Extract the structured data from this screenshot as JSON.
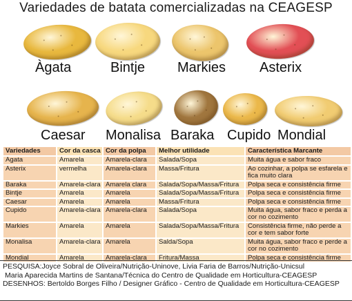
{
  "title": "Variedades de batata comercializadas na CEAGESP",
  "varieties_row1": [
    {
      "name": "Àgata",
      "color": "#e8b83e"
    },
    {
      "name": "Bintje",
      "color": "#f7d87e"
    },
    {
      "name": "Markies",
      "color": "#ecc56c"
    },
    {
      "name": "Asterix",
      "color": "#e24f55"
    }
  ],
  "varieties_row2": [
    {
      "name": "Caesar",
      "color": "#e6b44d"
    },
    {
      "name": "Monalisa",
      "color": "#f5dc8a"
    },
    {
      "name": "Baraka",
      "color": "#a0763e"
    },
    {
      "name": "Cupido",
      "color": "#ebb84a"
    },
    {
      "name": "Mondial",
      "color": "#f1cc72"
    }
  ],
  "table": {
    "headers": [
      "Variedades",
      "Cor da casca",
      "Cor da polpa",
      "Melhor utilidade",
      "Característica Marcante"
    ],
    "rows": [
      [
        "Àgata",
        "Amarela",
        "Amarela-clara",
        "Salada/Sopa",
        "Muita água e sabor fraco"
      ],
      [
        "Asterix",
        "vermelha",
        "Amarela-clara",
        "Massa/Fritura",
        "Ao cozinhar, a polpa se esfarela e fica muito clara"
      ],
      [
        "Baraka",
        "Amarela-clara",
        "Amarela clara",
        "Salada/Sopa/Massa/Fritura",
        "Polpa seca e consistência firme"
      ],
      [
        "Bintje",
        "Amarela",
        "Amarela",
        "Salada/Sopa/Massa/Fritura",
        "Polpa seca e consistência firme"
      ],
      [
        "Caesar",
        "Amarela",
        "Amarela",
        "Massa/Fritura",
        "Polpa seca e consistência firme"
      ],
      [
        "Cupido",
        "Amarela-clara",
        "Amarela-clara",
        "Salada/Sopa",
        "Muita água, sabor fraco e perda a cor no cozimento"
      ],
      [
        "Markies",
        "Amarela",
        "Amarela",
        "Salada/Sopa/Massa/Fritura",
        "Consistência firme, não perde a cor e tem sabor forte"
      ],
      [
        "Monalisa",
        "Amarela-clara",
        "Amarela",
        "Salda/Sopa",
        "Muita água, sabor fraco e perde a cor no cozimento"
      ],
      [
        "Mondial",
        "Amarela",
        "Amarela-clara",
        "Fritura/Massa",
        "Polpa seca e consistência firme"
      ]
    ]
  },
  "credits": {
    "line1": "PESQUISA:Joyce Sobral de Oliveira/Nutrição-Uninove, Livia Faria de Barros/Nutrição-Unicsul",
    "line2": "Maria Aparecida Martins de Santana/Técnica do Centro de Qualidade em Horticultura-CEAGESP",
    "line3": "DESENHOS: Bertoldo Borges Filho / Designer Gráfico - Centro de Qualidade em Horticultura-CEAGESP"
  }
}
